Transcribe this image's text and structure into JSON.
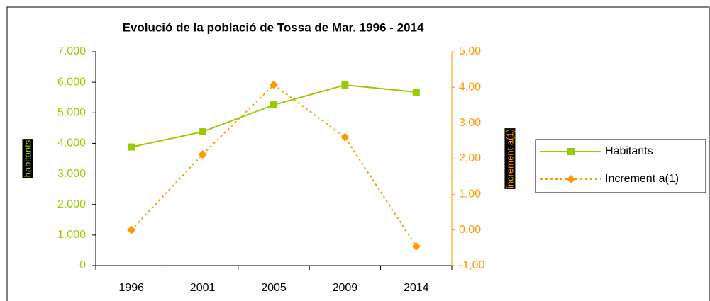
{
  "chart_data": {
    "type": "line",
    "title": "Evolució de la població de Tossa de Mar. 1996 - 2014",
    "categories": [
      "1996",
      "2001",
      "2005",
      "2009",
      "2014"
    ],
    "series": [
      {
        "name": "Habitants",
        "color": "#99cc00",
        "marker": "square",
        "dash": "solid",
        "values": [
          3880,
          4380,
          5260,
          5910,
          5680
        ]
      },
      {
        "name": "Increment a(1)",
        "color": "#ff9900",
        "marker": "diamond",
        "dash": "dotted",
        "axis": "y2",
        "values": [
          0.0,
          2.12,
          4.07,
          2.6,
          -0.46
        ]
      }
    ],
    "ylabel": "habitants",
    "y2label": "increment a(1)",
    "ylim": [
      0,
      7000
    ],
    "yticks": [
      {
        "value": 0,
        "label": "0"
      },
      {
        "value": 1000,
        "label": "1.000"
      },
      {
        "value": 2000,
        "label": "2.000"
      },
      {
        "value": 3000,
        "label": "3.000"
      },
      {
        "value": 4000,
        "label": "4.000"
      },
      {
        "value": 5000,
        "label": "5.000"
      },
      {
        "value": 6000,
        "label": "6.000"
      },
      {
        "value": 7000,
        "label": "7.000"
      }
    ],
    "y2lim": [
      -1,
      5
    ],
    "y2ticks": [
      {
        "value": -1,
        "label": "-1,00"
      },
      {
        "value": 0,
        "label": "0,00"
      },
      {
        "value": 1,
        "label": "1,00"
      },
      {
        "value": 2,
        "label": "2,00"
      },
      {
        "value": 3,
        "label": "3,00"
      },
      {
        "value": 4,
        "label": "4,00"
      },
      {
        "value": 5,
        "label": "5,00"
      }
    ],
    "grid": false,
    "legend": "right"
  }
}
